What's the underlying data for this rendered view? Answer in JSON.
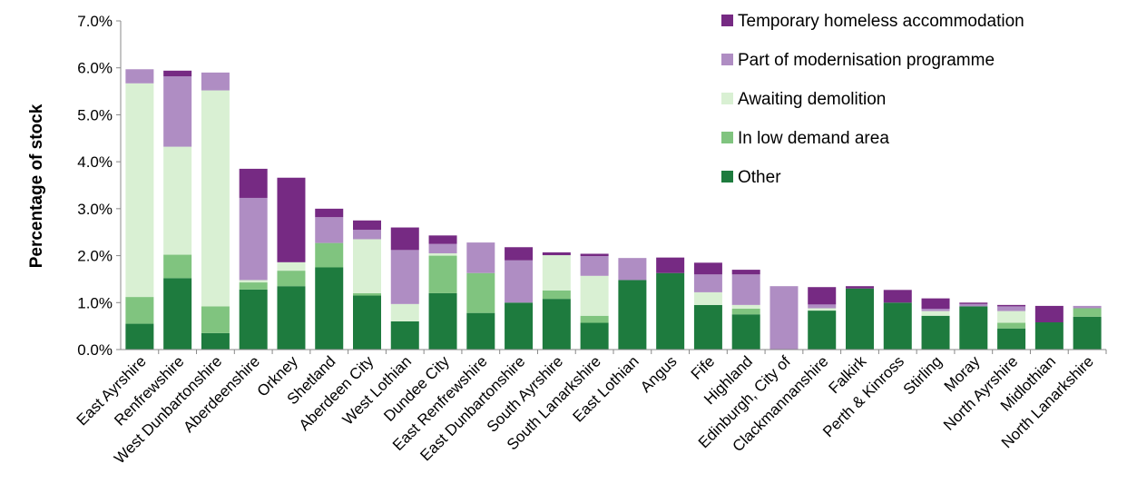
{
  "chart_data": {
    "type": "bar",
    "stacked": true,
    "title": "",
    "xlabel": "",
    "ylabel": "Percentage of stock",
    "ylim": [
      0,
      7.0
    ],
    "yticks": [
      "0.0%",
      "1.0%",
      "2.0%",
      "3.0%",
      "4.0%",
      "5.0%",
      "6.0%",
      "7.0%"
    ],
    "grid": false,
    "legend_position": "top-right",
    "categories": [
      "East Ayrshire",
      "Renfrewshire",
      "West Dunbartonshire",
      "Aberdeenshire",
      "Orkney",
      "Shetland",
      "Aberdeen City",
      "West Lothian",
      "Dundee City",
      "East Renfrewshire",
      "East Dunbartonshire",
      "South Ayrshire",
      "South Lanarkshire",
      "East Lothian",
      "Angus",
      "Fife",
      "Highland",
      "Edinburgh, City of",
      "Clackmannanshire",
      "Falkirk",
      "Perth & Kinross",
      "Stirling",
      "Moray",
      "North Ayrshire",
      "Midlothian",
      "North Lanarkshire"
    ],
    "series": [
      {
        "name": "Other",
        "color": "#1e7b3e",
        "values": [
          0.55,
          1.52,
          0.35,
          1.28,
          1.35,
          1.75,
          1.15,
          0.6,
          1.2,
          0.78,
          1.0,
          1.08,
          0.57,
          1.48,
          1.63,
          0.95,
          0.75,
          0.0,
          0.83,
          1.3,
          1.0,
          0.72,
          0.92,
          0.45,
          0.58,
          0.7
        ]
      },
      {
        "name": "In low demand area",
        "color": "#80c47f",
        "values": [
          0.57,
          0.5,
          0.57,
          0.15,
          0.33,
          0.52,
          0.05,
          0.0,
          0.8,
          0.85,
          0.0,
          0.18,
          0.15,
          0.0,
          0.0,
          0.0,
          0.12,
          0.0,
          0.0,
          0.0,
          0.0,
          0.0,
          0.0,
          0.12,
          0.0,
          0.18
        ]
      },
      {
        "name": "Awaiting demolition",
        "color": "#d9f0d3",
        "values": [
          4.55,
          2.3,
          4.6,
          0.05,
          0.18,
          0.0,
          1.15,
          0.37,
          0.05,
          0.0,
          0.0,
          0.75,
          0.85,
          0.0,
          0.0,
          0.27,
          0.08,
          0.0,
          0.05,
          0.0,
          0.0,
          0.1,
          0.0,
          0.25,
          0.0,
          0.0
        ]
      },
      {
        "name": "Part of modernisation programme",
        "color": "#af8dc3",
        "values": [
          0.3,
          1.5,
          0.38,
          1.75,
          0.0,
          0.55,
          0.2,
          1.15,
          0.2,
          0.65,
          0.9,
          0.0,
          0.42,
          0.47,
          0.0,
          0.38,
          0.65,
          1.35,
          0.08,
          0.0,
          0.0,
          0.05,
          0.05,
          0.1,
          0.0,
          0.05
        ]
      },
      {
        "name": "Temporary homeless accommodation",
        "color": "#762a83",
        "values": [
          0.0,
          0.12,
          0.0,
          0.62,
          1.8,
          0.18,
          0.2,
          0.48,
          0.18,
          0.0,
          0.28,
          0.06,
          0.05,
          0.0,
          0.33,
          0.25,
          0.1,
          0.0,
          0.37,
          0.05,
          0.27,
          0.22,
          0.03,
          0.03,
          0.35,
          0.0
        ]
      }
    ]
  }
}
